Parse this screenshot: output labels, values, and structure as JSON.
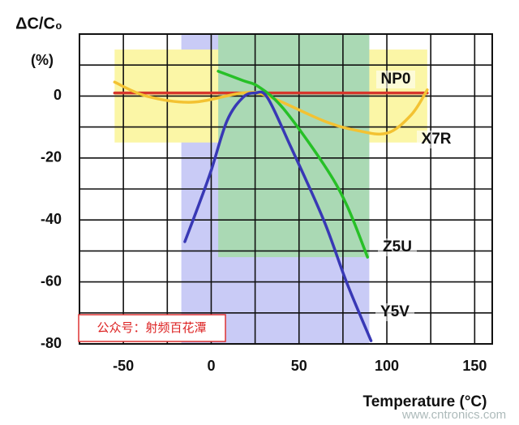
{
  "chart_data": {
    "type": "line",
    "ylabel": "ΔC/C₀",
    "ylabel_unit": "(%)",
    "xlabel": "Temperature (°C)",
    "xlim": [
      -75,
      160
    ],
    "xticks": [
      -50,
      0,
      50,
      100,
      150
    ],
    "xminor": [
      -25,
      25,
      75,
      125
    ],
    "ylim": [
      -80,
      20
    ],
    "yticks": [
      0,
      -20,
      -40,
      -60,
      -80
    ],
    "yminor": [
      10,
      -10,
      -30,
      -50,
      -70
    ],
    "grid": true,
    "bands": [
      {
        "color": "#c9cbf6",
        "xlim": [
          -17,
          90
        ],
        "ylim": [
          -80,
          20
        ]
      },
      {
        "color": "#fbf6a6",
        "xlim": [
          -55,
          123
        ],
        "ylim": [
          -15,
          15
        ]
      },
      {
        "color": "#aad9b4",
        "xlim": [
          4,
          90
        ],
        "ylim": [
          -52,
          20
        ]
      }
    ],
    "series": [
      {
        "name": "NP0",
        "color": "#d6372c",
        "x": [
          -55,
          123
        ],
        "values": [
          1,
          1
        ]
      },
      {
        "name": "X7R",
        "color": "#f3c232",
        "x": [
          -55,
          -37,
          -11,
          18,
          32,
          64,
          82,
          100,
          114,
          123
        ],
        "values": [
          4.5,
          0,
          -2,
          1,
          0,
          -8,
          -11,
          -12,
          -6,
          2
        ]
      },
      {
        "name": "Z5U",
        "color": "#27c027",
        "x": [
          4,
          18,
          27,
          41,
          64,
          77,
          89
        ],
        "values": [
          8,
          5,
          3,
          -4,
          -22,
          -35,
          -52
        ]
      },
      {
        "name": "Y5V",
        "color": "#3838b5",
        "x": [
          -15,
          -7,
          0,
          9,
          18,
          25,
          32,
          45,
          64,
          77,
          91
        ],
        "values": [
          -47,
          -35,
          -24,
          -8,
          -0.5,
          1,
          -0.5,
          -16,
          -40,
          -60,
          -79
        ]
      }
    ],
    "annotations": [
      "公众号：射频百花潭",
      "www.cntronics.com"
    ]
  }
}
